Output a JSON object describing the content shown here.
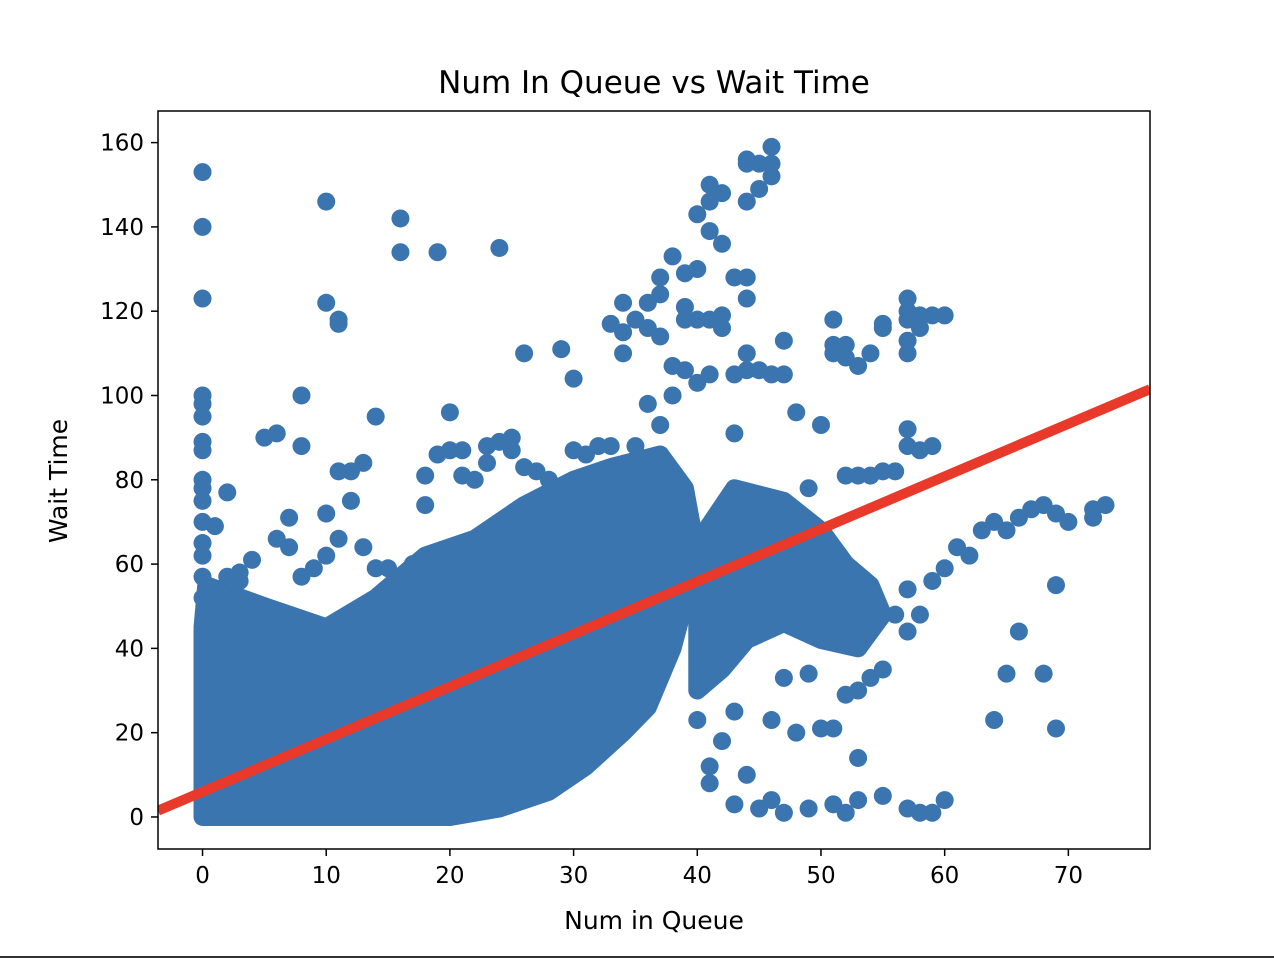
{
  "chart_data": {
    "type": "scatter",
    "title": "Num In Queue vs Wait Time",
    "xlabel": "Num in Queue",
    "ylabel": "Wait Time",
    "xlim": [
      -3.6,
      76.6
    ],
    "ylim": [
      -7.6,
      167.5
    ],
    "xticks": [
      0,
      10,
      20,
      30,
      40,
      50,
      60,
      70
    ],
    "yticks": [
      0,
      20,
      40,
      60,
      80,
      100,
      120,
      140,
      160
    ],
    "grid": false,
    "legend": "none",
    "colors": {
      "points": "#3b75af",
      "fit_line": "#e8392a"
    },
    "regression_line": {
      "x": [
        -3.6,
        76.6
      ],
      "y": [
        1.5,
        101.5
      ]
    },
    "dense_region": [
      [
        0,
        0
      ],
      [
        0,
        45
      ],
      [
        0.3,
        55
      ],
      [
        5,
        50
      ],
      [
        10,
        45
      ],
      [
        14,
        52
      ],
      [
        18,
        62
      ],
      [
        22,
        66
      ],
      [
        26,
        74
      ],
      [
        30,
        80
      ],
      [
        33,
        83
      ],
      [
        37,
        86
      ],
      [
        39,
        78
      ],
      [
        40,
        62
      ],
      [
        38,
        40
      ],
      [
        36,
        26
      ],
      [
        34,
        20
      ],
      [
        31,
        12
      ],
      [
        28,
        6
      ],
      [
        24,
        2
      ],
      [
        20,
        0
      ]
    ],
    "dense_region_2": [
      [
        40,
        30
      ],
      [
        40,
        65
      ],
      [
        43,
        78
      ],
      [
        47,
        75
      ],
      [
        50,
        68
      ],
      [
        52,
        60
      ],
      [
        54,
        55
      ],
      [
        55,
        48
      ],
      [
        53,
        40
      ],
      [
        50,
        42
      ],
      [
        47,
        46
      ],
      [
        44,
        42
      ],
      [
        42,
        35
      ]
    ],
    "points": [
      [
        0,
        153
      ],
      [
        0,
        140
      ],
      [
        0,
        123
      ],
      [
        0,
        100
      ],
      [
        0,
        98
      ],
      [
        0,
        95
      ],
      [
        0,
        89
      ],
      [
        0,
        87
      ],
      [
        0,
        80
      ],
      [
        0,
        78
      ],
      [
        0,
        75
      ],
      [
        0,
        70
      ],
      [
        0,
        65
      ],
      [
        0,
        62
      ],
      [
        0,
        57
      ],
      [
        0,
        52
      ],
      [
        1,
        69
      ],
      [
        2,
        77
      ],
      [
        2,
        57
      ],
      [
        3,
        58
      ],
      [
        3,
        56
      ],
      [
        4,
        61
      ],
      [
        5,
        90
      ],
      [
        6,
        91
      ],
      [
        6,
        66
      ],
      [
        7,
        71
      ],
      [
        7,
        64
      ],
      [
        8,
        100
      ],
      [
        8,
        88
      ],
      [
        8,
        57
      ],
      [
        9,
        59
      ],
      [
        10,
        146
      ],
      [
        10,
        122
      ],
      [
        10,
        72
      ],
      [
        10,
        62
      ],
      [
        11,
        118
      ],
      [
        11,
        117
      ],
      [
        11,
        82
      ],
      [
        11,
        66
      ],
      [
        12,
        82
      ],
      [
        12,
        75
      ],
      [
        13,
        84
      ],
      [
        13,
        64
      ],
      [
        14,
        95
      ],
      [
        14,
        59
      ],
      [
        15,
        59
      ],
      [
        16,
        142
      ],
      [
        16,
        134
      ],
      [
        17,
        60
      ],
      [
        18,
        81
      ],
      [
        18,
        74
      ],
      [
        19,
        134
      ],
      [
        19,
        86
      ],
      [
        20,
        96
      ],
      [
        20,
        87
      ],
      [
        21,
        87
      ],
      [
        21,
        81
      ],
      [
        22,
        80
      ],
      [
        23,
        88
      ],
      [
        23,
        84
      ],
      [
        24,
        135
      ],
      [
        24,
        89
      ],
      [
        25,
        90
      ],
      [
        25,
        87
      ],
      [
        26,
        110
      ],
      [
        26,
        83
      ],
      [
        27,
        82
      ],
      [
        28,
        80
      ],
      [
        29,
        111
      ],
      [
        30,
        104
      ],
      [
        30,
        87
      ],
      [
        31,
        86
      ],
      [
        32,
        88
      ],
      [
        33,
        117
      ],
      [
        33,
        88
      ],
      [
        34,
        122
      ],
      [
        34,
        115
      ],
      [
        34,
        110
      ],
      [
        35,
        118
      ],
      [
        35,
        88
      ],
      [
        36,
        122
      ],
      [
        36,
        116
      ],
      [
        36,
        98
      ],
      [
        37,
        128
      ],
      [
        37,
        124
      ],
      [
        37,
        114
      ],
      [
        37,
        93
      ],
      [
        38,
        133
      ],
      [
        38,
        107
      ],
      [
        38,
        100
      ],
      [
        39,
        129
      ],
      [
        39,
        106
      ],
      [
        39,
        121
      ],
      [
        39,
        118
      ],
      [
        40,
        130
      ],
      [
        40,
        143
      ],
      [
        40,
        118
      ],
      [
        40,
        103
      ],
      [
        41,
        150
      ],
      [
        41,
        146
      ],
      [
        41,
        139
      ],
      [
        41,
        118
      ],
      [
        41,
        105
      ],
      [
        42,
        148
      ],
      [
        42,
        136
      ],
      [
        42,
        119
      ],
      [
        42,
        116
      ],
      [
        43,
        128
      ],
      [
        43,
        105
      ],
      [
        43,
        91
      ],
      [
        44,
        156
      ],
      [
        44,
        155
      ],
      [
        44,
        146
      ],
      [
        44,
        128
      ],
      [
        44,
        123
      ],
      [
        44,
        110
      ],
      [
        44,
        106
      ],
      [
        45,
        155
      ],
      [
        45,
        149
      ],
      [
        45,
        106
      ],
      [
        46,
        159
      ],
      [
        46,
        152
      ],
      [
        46,
        155
      ],
      [
        46,
        105
      ],
      [
        47,
        113
      ],
      [
        47,
        105
      ],
      [
        48,
        96
      ],
      [
        49,
        78
      ],
      [
        50,
        93
      ],
      [
        51,
        118
      ],
      [
        51,
        112
      ],
      [
        51,
        110
      ],
      [
        52,
        112
      ],
      [
        52,
        109
      ],
      [
        53,
        107
      ],
      [
        52,
        81
      ],
      [
        53,
        81
      ],
      [
        54,
        110
      ],
      [
        54,
        81
      ],
      [
        55,
        117
      ],
      [
        55,
        116
      ],
      [
        55,
        82
      ],
      [
        56,
        82
      ],
      [
        57,
        123
      ],
      [
        57,
        120
      ],
      [
        57,
        118
      ],
      [
        57,
        113
      ],
      [
        57,
        110
      ],
      [
        57,
        92
      ],
      [
        57,
        88
      ],
      [
        58,
        119
      ],
      [
        58,
        116
      ],
      [
        58,
        87
      ],
      [
        59,
        119
      ],
      [
        59,
        88
      ],
      [
        60,
        119
      ],
      [
        48,
        20
      ],
      [
        49,
        34
      ],
      [
        50,
        21
      ],
      [
        51,
        21
      ],
      [
        52,
        29
      ],
      [
        53,
        30
      ],
      [
        53,
        14
      ],
      [
        54,
        33
      ],
      [
        55,
        35
      ],
      [
        56,
        48
      ],
      [
        57,
        54
      ],
      [
        57,
        44
      ],
      [
        58,
        48
      ],
      [
        59,
        56
      ],
      [
        60,
        59
      ],
      [
        61,
        64
      ],
      [
        62,
        62
      ],
      [
        63,
        68
      ],
      [
        64,
        70
      ],
      [
        65,
        68
      ],
      [
        66,
        71
      ],
      [
        67,
        73
      ],
      [
        68,
        74
      ],
      [
        69,
        72
      ],
      [
        70,
        70
      ],
      [
        72,
        73
      ],
      [
        72,
        71
      ],
      [
        73,
        74
      ],
      [
        69,
        55
      ],
      [
        66,
        44
      ],
      [
        65,
        34
      ],
      [
        68,
        34
      ],
      [
        64,
        23
      ],
      [
        69,
        21
      ],
      [
        45,
        2
      ],
      [
        46,
        4
      ],
      [
        47,
        1
      ],
      [
        49,
        2
      ],
      [
        51,
        3
      ],
      [
        52,
        1
      ],
      [
        53,
        4
      ],
      [
        55,
        5
      ],
      [
        57,
        2
      ],
      [
        58,
        1
      ],
      [
        59,
        1
      ],
      [
        60,
        4
      ],
      [
        43,
        3
      ],
      [
        44,
        10
      ],
      [
        41,
        12
      ],
      [
        41,
        8
      ],
      [
        40,
        23
      ],
      [
        42,
        18
      ],
      [
        43,
        25
      ],
      [
        46,
        23
      ],
      [
        47,
        33
      ],
      [
        45,
        47
      ],
      [
        46,
        45
      ]
    ]
  }
}
